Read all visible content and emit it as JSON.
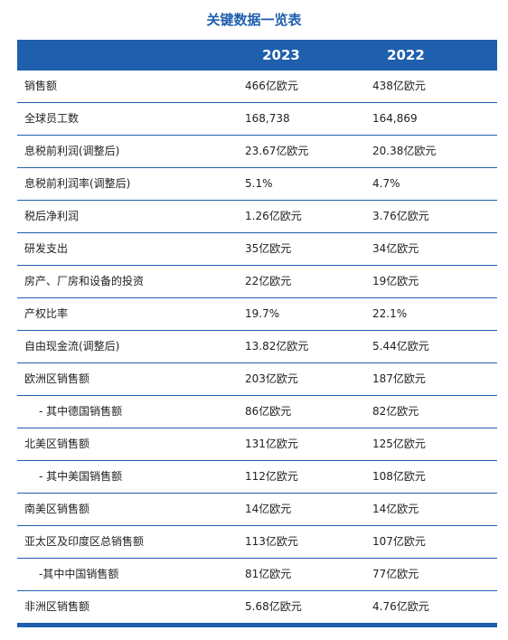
{
  "title": "关键数据一览表",
  "header": {
    "col_2023": "2023",
    "col_2022": "2022"
  },
  "accent_color": "#1f5fae",
  "rows": [
    {
      "label": "销售额",
      "v2023": "466亿欧元",
      "v2022": "438亿欧元",
      "indent": false
    },
    {
      "label": "全球员工数",
      "v2023": "168,738",
      "v2022": "164,869",
      "indent": false
    },
    {
      "label": "息税前利润(调整后)",
      "v2023": "23.67亿欧元",
      "v2022": "20.38亿欧元",
      "indent": false
    },
    {
      "label": "息税前利润率(调整后)",
      "v2023": "5.1%",
      "v2022": "4.7%",
      "indent": false
    },
    {
      "label": "税后净利润",
      "v2023": "1.26亿欧元",
      "v2022": "3.76亿欧元",
      "indent": false
    },
    {
      "label": "研发支出",
      "v2023": "35亿欧元",
      "v2022": "34亿欧元",
      "indent": false
    },
    {
      "label": "房产、厂房和设备的投资",
      "v2023": "22亿欧元",
      "v2022": "19亿欧元",
      "indent": false
    },
    {
      "label": "产权比率",
      "v2023": "19.7%",
      "v2022": "22.1%",
      "indent": false
    },
    {
      "label": "自由现金流(调整后)",
      "v2023": "13.82亿欧元",
      "v2022": "5.44亿欧元",
      "indent": false
    },
    {
      "label": "欧洲区销售额",
      "v2023": "203亿欧元",
      "v2022": "187亿欧元",
      "indent": false
    },
    {
      "label": "- 其中德国销售额",
      "v2023": "86亿欧元",
      "v2022": "82亿欧元",
      "indent": true
    },
    {
      "label": "北美区销售额",
      "v2023": "131亿欧元",
      "v2022": "125亿欧元",
      "indent": false
    },
    {
      "label": "- 其中美国销售额",
      "v2023": "112亿欧元",
      "v2022": "108亿欧元",
      "indent": true
    },
    {
      "label": "南美区销售额",
      "v2023": "14亿欧元",
      "v2022": "14亿欧元",
      "indent": false
    },
    {
      "label": "亚太区及印度区总销售额",
      "v2023": "113亿欧元",
      "v2022": "107亿欧元",
      "indent": false
    },
    {
      "label": "-其中中国销售额",
      "v2023": "81亿欧元",
      "v2022": "77亿欧元",
      "indent": true
    },
    {
      "label": "非洲区销售额",
      "v2023": "5.68亿欧元",
      "v2022": "4.76亿欧元",
      "indent": false
    }
  ]
}
